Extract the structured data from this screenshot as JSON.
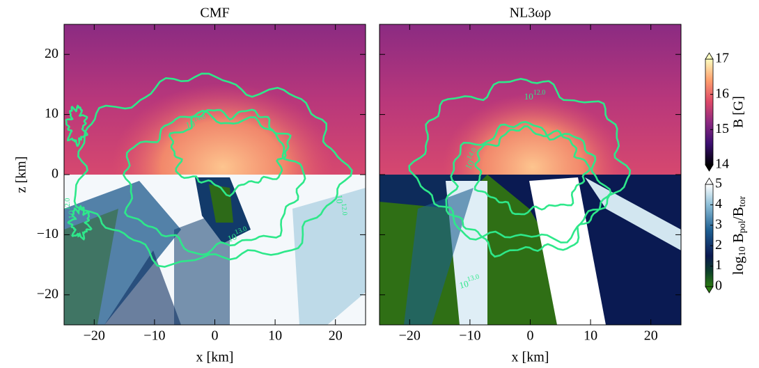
{
  "chart_data": [
    {
      "type": "heatmap",
      "title": "CMF",
      "xlabel": "x [km]",
      "ylabel": "z [km]",
      "xlim": [
        -25,
        25
      ],
      "ylim": [
        -25,
        25
      ],
      "xticks": [
        {
          "value": -20,
          "label": "−20"
        },
        {
          "value": -10,
          "label": "−10"
        },
        0,
        10,
        20
      ],
      "yticks": [
        {
          "value": -20,
          "label": "−20"
        },
        {
          "value": -10,
          "label": "−10"
        },
        0,
        10,
        20
      ],
      "ytick_labels": true,
      "contour_labels": [
        {
          "base": "10",
          "exponent": "14.0"
        },
        {
          "base": "10",
          "exponent": "12.0"
        },
        {
          "base": "10",
          "exponent": "13.0"
        },
        {
          "base": "10",
          "exponent": "12.0"
        }
      ]
    },
    {
      "type": "heatmap",
      "title": "NL3ωρ",
      "xlabel": "x [km]",
      "xlim": [
        -25,
        25
      ],
      "ylim": [
        -25,
        25
      ],
      "xticks": [
        {
          "value": -20,
          "label": "−20"
        },
        {
          "value": -10,
          "label": "−10"
        },
        0,
        10,
        20
      ],
      "yticks": [
        {
          "value": -20,
          "label": "−20"
        },
        {
          "value": -10,
          "label": "−10"
        },
        0,
        10,
        20
      ],
      "ytick_labels": false,
      "contour_labels": [
        {
          "base": "10",
          "exponent": "12.0"
        },
        {
          "base": "10",
          "exponent": "14.0"
        },
        {
          "base": "10",
          "exponent": "13.0"
        }
      ]
    }
  ],
  "colorbars": [
    {
      "label": "B [G]",
      "lim": [
        14,
        17
      ],
      "ticks": [
        14,
        15,
        16,
        17
      ]
    },
    {
      "label_parts": [
        {
          "text": "log"
        },
        {
          "text": "10",
          "sub": true
        },
        {
          "text": " B"
        },
        {
          "text": "pol",
          "sub": true
        },
        {
          "text": "/B"
        },
        {
          "text": "tor",
          "sub": true
        }
      ],
      "lim": [
        0,
        5
      ],
      "ticks": [
        0,
        1,
        2,
        3,
        4,
        5
      ]
    }
  ]
}
